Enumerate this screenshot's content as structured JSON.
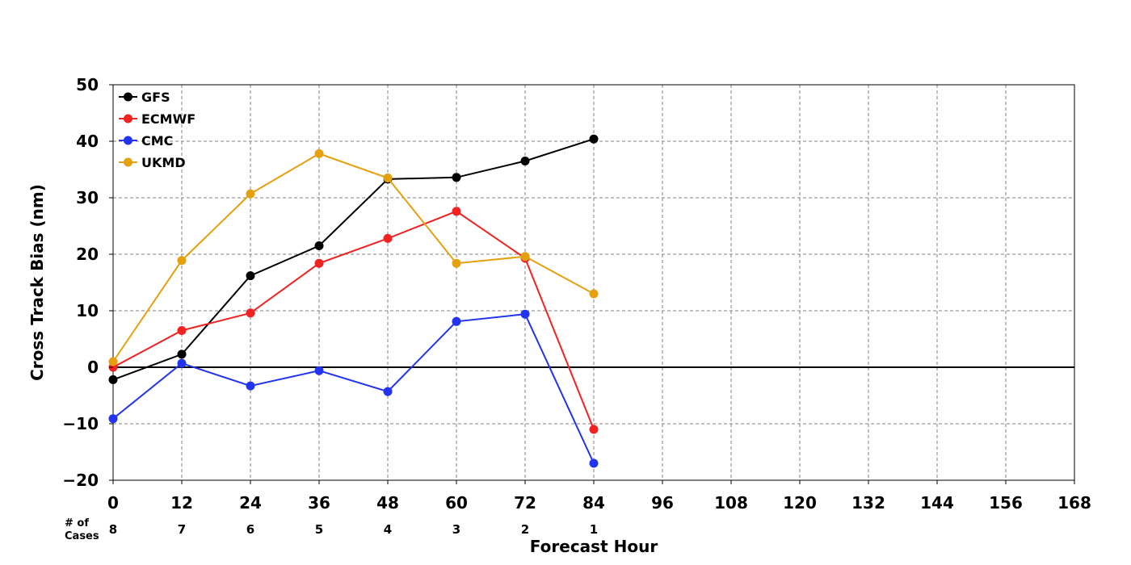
{
  "chart_data": {
    "type": "line",
    "xlabel": "Forecast Hour",
    "ylabel": "Cross Track Bias (nm)",
    "xlim": [
      0,
      168
    ],
    "ylim": [
      -20,
      50
    ],
    "x_ticks": [
      0,
      12,
      24,
      36,
      48,
      60,
      72,
      84,
      96,
      108,
      120,
      132,
      144,
      156,
      168
    ],
    "x_tick_labels": [
      "0",
      "12",
      "24",
      "36",
      "48",
      "60",
      "72",
      "84",
      "96",
      "108",
      "120",
      "132",
      "144",
      "156",
      "168"
    ],
    "y_ticks": [
      -20,
      -10,
      0,
      10,
      20,
      30,
      40,
      50
    ],
    "y_tick_labels": [
      "−20",
      "−10",
      "0",
      "10",
      "20",
      "30",
      "40",
      "50"
    ],
    "grid": true,
    "legend_position": "top-left",
    "x": [
      0,
      12,
      24,
      36,
      48,
      60,
      72,
      84
    ],
    "series": [
      {
        "name": "GFS",
        "color": "#000000",
        "values": [
          -2.2,
          2.3,
          16.2,
          21.5,
          33.3,
          33.6,
          36.5,
          40.4
        ]
      },
      {
        "name": "ECMWF",
        "color": "#f22222",
        "values": [
          0.0,
          6.5,
          9.6,
          18.4,
          22.8,
          27.6,
          19.3,
          -11.0
        ]
      },
      {
        "name": "CMC",
        "color": "#2233f2",
        "values": [
          -9.1,
          0.7,
          -3.3,
          -0.6,
          -4.3,
          8.1,
          9.4,
          -17.0
        ]
      },
      {
        "name": "UKMD",
        "color": "#e5a00e",
        "values": [
          1.0,
          18.9,
          30.7,
          37.8,
          33.5,
          18.4,
          19.6,
          13.0
        ]
      }
    ],
    "cases_label_line1": "# of",
    "cases_label_line2": "Cases",
    "cases": [
      "8",
      "7",
      "6",
      "5",
      "4",
      "3",
      "2",
      "1"
    ]
  }
}
